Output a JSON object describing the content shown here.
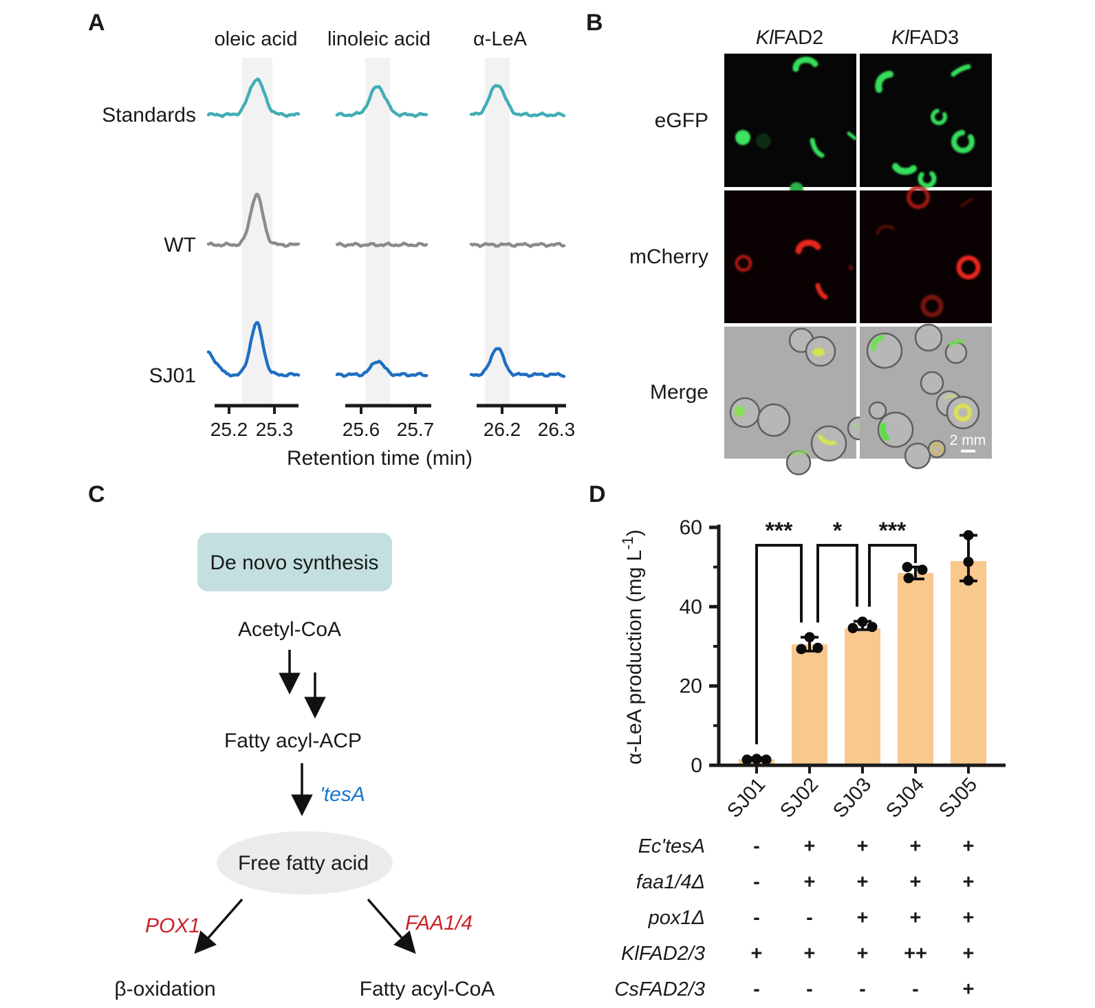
{
  "figure": {
    "panel_a": {
      "label": "A"
    },
    "panel_b": {
      "label": "B",
      "column_headers": [
        {
          "prefix": "Kl",
          "rest": "FAD2"
        },
        {
          "prefix": "Kl",
          "rest": "FAD3"
        }
      ],
      "row_labels": [
        "eGFP",
        "mCherry",
        "Merge"
      ],
      "scale_bar_label": "2 mm"
    },
    "panel_c": {
      "label": "C",
      "box_label": "De novo synthesis",
      "node_acetyl": "Acetyl-CoA",
      "node_acp": "Fatty acyl-ACP",
      "enzyme_tesa": "'tesA",
      "node_ffa": "Free fatty acid",
      "enzyme_pox1": "POX1",
      "enzyme_faa": "FAA1/4",
      "node_beta": "β-oxidation",
      "node_coa": "Fatty acyl-CoA",
      "colors": {
        "box_fill": "#c3dfe0",
        "ellipse_fill": "#ebebeb",
        "enzyme_blue": "#1777cb",
        "enzyme_red": "#cb2128"
      }
    },
    "panel_d": {
      "label": "D",
      "ylabel_parts": {
        "pre": "α-LeA production (mg L",
        "sup": "-1",
        "post": ")"
      },
      "genotype_rows": [
        {
          "label": "Ec'tesA",
          "values": [
            "-",
            "+",
            "+",
            "+",
            "+"
          ]
        },
        {
          "label": "faa1/4Δ",
          "values": [
            "-",
            "+",
            "+",
            "+",
            "+"
          ]
        },
        {
          "label": "pox1Δ",
          "values": [
            "-",
            "-",
            "+",
            "+",
            "+"
          ]
        },
        {
          "label": "KlFAD2/3",
          "values": [
            "+",
            "+",
            "+",
            "++",
            "+"
          ]
        },
        {
          "label": "CsFAD2/3",
          "values": [
            "-",
            "-",
            "-",
            "-",
            "+"
          ]
        }
      ]
    }
  },
  "chart_data": [
    {
      "type": "line",
      "title": "GC chromatograms of fatty acid peaks",
      "xlabel": "Retention time (min)",
      "columns": [
        {
          "name": "oleic acid",
          "tick_labels": [
            "25.2",
            "25.3"
          ]
        },
        {
          "name": "linoleic acid",
          "tick_labels": [
            "25.6",
            "25.7"
          ]
        },
        {
          "name": "α-LeA",
          "tick_labels": [
            "26.2",
            "26.3"
          ]
        }
      ],
      "series": [
        {
          "name": "Standards",
          "color": "#41aeb4",
          "peaks": [
            {
              "column": "oleic acid",
              "rel_height": 1.0
            },
            {
              "column": "linoleic acid",
              "rel_height": 0.8
            },
            {
              "column": "α-LeA",
              "rel_height": 0.85
            }
          ]
        },
        {
          "name": "WT",
          "color": "#8b8b8b",
          "peaks": [
            {
              "column": "oleic acid",
              "rel_height": 1.0
            },
            {
              "column": "linoleic acid",
              "rel_height": 0
            },
            {
              "column": "α-LeA",
              "rel_height": 0
            }
          ]
        },
        {
          "name": "SJ01",
          "color": "#1f6ec2",
          "peaks": [
            {
              "column": "oleic acid",
              "rel_height": 1.0
            },
            {
              "column": "linoleic acid",
              "rel_height": 0.27
            },
            {
              "column": "α-LeA",
              "rel_height": 0.53
            }
          ]
        }
      ]
    },
    {
      "type": "bar",
      "categories": [
        "SJ01",
        "SJ02",
        "SJ03",
        "SJ04",
        "SJ05"
      ],
      "values": [
        1.5,
        30.5,
        34.5,
        48.5,
        51.5
      ],
      "points": [
        [
          [
            -14,
            1.4
          ],
          [
            0,
            1.6
          ],
          [
            14,
            1.4
          ]
        ],
        [
          [
            -12,
            29.3
          ],
          [
            12,
            29.6
          ],
          [
            0,
            32.3
          ]
        ],
        [
          [
            -14,
            34.6
          ],
          [
            0,
            36.2
          ],
          [
            14,
            34.9
          ]
        ],
        [
          [
            -12,
            50.0
          ],
          [
            -10,
            47.2
          ],
          [
            10,
            49.3
          ]
        ],
        [
          [
            0,
            58.0
          ],
          [
            0,
            51.3
          ],
          [
            0,
            46.6
          ]
        ]
      ],
      "error_low": [
        1.2,
        28.8,
        34.2,
        47.0,
        46.5
      ],
      "error_high": [
        1.9,
        32.3,
        36.3,
        50.0,
        58.0
      ],
      "significance": [
        {
          "from": "SJ01",
          "to": "SJ02",
          "label": "***"
        },
        {
          "from": "SJ02",
          "to": "SJ03",
          "label": "*"
        },
        {
          "from": "SJ03",
          "to": "SJ04",
          "label": "***"
        }
      ],
      "ylabel": "α-LeA production (mg L⁻¹)",
      "ylim": [
        0,
        60
      ],
      "yticks": [
        0,
        20,
        40,
        60
      ],
      "yticks_minor": [
        10,
        30,
        50
      ],
      "bar_color": "#f9c88c"
    }
  ]
}
